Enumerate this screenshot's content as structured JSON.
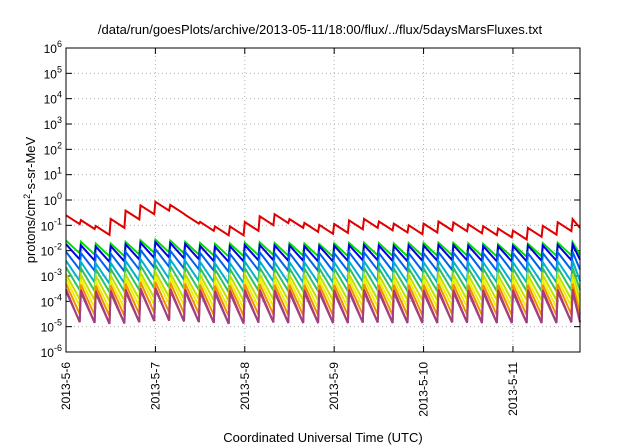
{
  "chart_data": {
    "type": "line",
    "title": "/data/run/goesPlots/archive/2013-05-11/18:00/flux/../flux/5daysMarsFluxes.txt",
    "xlabel": "Coordinated Universal Time (UTC)",
    "ylabel_prefix": "protons/cm",
    "ylabel_sup": "2",
    "ylabel_suffix": "-s-sr-MeV",
    "y_scale": "log",
    "ylim": [
      1e-06,
      1000000.0
    ],
    "xlim": [
      "2013-05-06 00:00",
      "2013-05-11 18:00"
    ],
    "x_ticks": [
      "2013-5-6",
      "2013-5-7",
      "2013-5-8",
      "2013-5-9",
      "2013-5-10",
      "2013-5-11"
    ],
    "y_ticks": [
      {
        "base": "10",
        "exp": "-6"
      },
      {
        "base": "10",
        "exp": "-5"
      },
      {
        "base": "10",
        "exp": "-4"
      },
      {
        "base": "10",
        "exp": "-3"
      },
      {
        "base": "10",
        "exp": "-2"
      },
      {
        "base": "10",
        "exp": "-1"
      },
      {
        "base": "10",
        "exp": "0"
      },
      {
        "base": "10",
        "exp": "1"
      },
      {
        "base": "10",
        "exp": "2"
      },
      {
        "base": "10",
        "exp": "3"
      },
      {
        "base": "10",
        "exp": "4"
      },
      {
        "base": "10",
        "exp": "5"
      },
      {
        "base": "10",
        "exp": "6"
      }
    ],
    "grid": true,
    "sawtooth_period_hours": 4.0,
    "series": [
      {
        "color": "#e00000",
        "values": [
          0.25,
          0.15,
          0.08,
          0.3,
          0.5,
          0.9,
          0.7,
          0.25,
          0.12,
          0.08,
          0.1,
          0.2,
          0.3,
          0.18,
          0.12,
          0.1,
          0.12,
          0.2,
          0.15,
          0.12,
          0.1,
          0.12,
          0.15,
          0.12,
          0.1,
          0.08,
          0.06,
          0.08,
          0.1,
          0.15,
          0.2
        ]
      },
      {
        "color": "#00e000",
        "values": [
          0.025,
          0.022,
          0.018,
          0.02,
          0.025,
          0.028,
          0.025,
          0.022,
          0.02,
          0.018,
          0.02,
          0.022,
          0.02,
          0.02,
          0.019,
          0.018,
          0.02,
          0.021,
          0.02,
          0.019,
          0.02,
          0.02,
          0.021,
          0.02,
          0.019,
          0.018,
          0.018,
          0.019,
          0.02,
          0.021,
          0.022
        ]
      },
      {
        "color": "#0000e0",
        "values": [
          0.018,
          0.016,
          0.014,
          0.016,
          0.02,
          0.022,
          0.02,
          0.018,
          0.015,
          0.014,
          0.016,
          0.017,
          0.016,
          0.016,
          0.015,
          0.015,
          0.016,
          0.017,
          0.016,
          0.015,
          0.016,
          0.016,
          0.017,
          0.016,
          0.015,
          0.015,
          0.015,
          0.016,
          0.016,
          0.017,
          0.018
        ]
      },
      {
        "color": "#0060f0",
        "values": [
          0.009,
          0.008,
          0.007,
          0.008,
          0.01,
          0.012,
          0.01,
          0.009,
          0.008,
          0.007,
          0.008,
          0.009,
          0.008,
          0.008,
          0.008,
          0.008,
          0.008,
          0.009,
          0.008,
          0.008,
          0.008,
          0.008,
          0.009,
          0.008,
          0.008,
          0.008,
          0.008,
          0.008,
          0.008,
          0.009,
          0.009
        ]
      },
      {
        "color": "#00b0d0",
        "values": [
          0.004,
          0.0035,
          0.003,
          0.0035,
          0.0045,
          0.005,
          0.0045,
          0.004,
          0.0035,
          0.003,
          0.0035,
          0.004,
          0.0035,
          0.0035,
          0.0035,
          0.0035,
          0.0035,
          0.004,
          0.0035,
          0.0035,
          0.0035,
          0.0035,
          0.004,
          0.0035,
          0.0035,
          0.0035,
          0.0035,
          0.0035,
          0.0035,
          0.004,
          0.004
        ]
      },
      {
        "color": "#30c060",
        "values": [
          0.0022,
          0.002,
          0.0018,
          0.002,
          0.0025,
          0.0028,
          0.0025,
          0.0022,
          0.002,
          0.0018,
          0.002,
          0.0022,
          0.002,
          0.002,
          0.002,
          0.002,
          0.002,
          0.0022,
          0.002,
          0.002,
          0.002,
          0.002,
          0.0022,
          0.002,
          0.002,
          0.002,
          0.002,
          0.002,
          0.002,
          0.0022,
          0.0022
        ]
      },
      {
        "color": "#c0e000",
        "values": [
          0.0012,
          0.0011,
          0.001,
          0.0011,
          0.0013,
          0.0015,
          0.0013,
          0.0012,
          0.0011,
          0.001,
          0.0011,
          0.0012,
          0.0011,
          0.0011,
          0.0011,
          0.0011,
          0.0011,
          0.0012,
          0.0011,
          0.0011,
          0.0011,
          0.0011,
          0.0012,
          0.0011,
          0.0011,
          0.0011,
          0.0011,
          0.0011,
          0.0011,
          0.0012,
          0.0012
        ]
      },
      {
        "color": "#f0f000",
        "values": [
          0.0008,
          0.0007,
          0.0006,
          0.0007,
          0.0009,
          0.001,
          0.0009,
          0.0008,
          0.0007,
          0.0006,
          0.0007,
          0.0008,
          0.0007,
          0.0007,
          0.0007,
          0.0007,
          0.0007,
          0.0008,
          0.0007,
          0.0007,
          0.0007,
          0.0007,
          0.0008,
          0.0007,
          0.0007,
          0.0007,
          0.0007,
          0.0007,
          0.0007,
          0.0008,
          0.0008
        ]
      },
      {
        "color": "#f09000",
        "values": [
          0.0005,
          0.00045,
          0.0004,
          0.00045,
          0.00055,
          0.0006,
          0.00055,
          0.0005,
          0.00045,
          0.0004,
          0.00045,
          0.0005,
          0.00045,
          0.00045,
          0.00045,
          0.00045,
          0.00045,
          0.0005,
          0.00045,
          0.00045,
          0.00045,
          0.00045,
          0.0005,
          0.00045,
          0.00045,
          0.00045,
          0.00045,
          0.00045,
          0.00045,
          0.0005,
          0.0005
        ]
      },
      {
        "color": "#c03050",
        "values": [
          0.0003,
          0.00028,
          0.00025,
          0.00028,
          0.00032,
          0.00035,
          0.00032,
          0.0003,
          0.00028,
          0.00025,
          0.00028,
          0.0003,
          0.00028,
          0.00028,
          0.00028,
          0.00028,
          0.00028,
          0.0003,
          0.00028,
          0.00028,
          0.00028,
          0.00028,
          0.0003,
          0.00028,
          0.00028,
          0.00028,
          0.00028,
          0.00028,
          0.00028,
          0.0003,
          0.0003
        ]
      },
      {
        "color": "#a04080",
        "values": [
          0.00025,
          0.00022,
          0.0002,
          0.00022,
          0.00026,
          0.0003,
          0.00026,
          0.00024,
          0.00022,
          0.0002,
          0.00022,
          0.00024,
          0.00022,
          0.00022,
          0.00022,
          0.00022,
          0.00022,
          0.00024,
          0.00022,
          0.00022,
          0.00022,
          0.00022,
          0.00024,
          0.00022,
          0.00022,
          0.00022,
          0.00022,
          0.00022,
          0.00022,
          0.00024,
          0.00024
        ]
      }
    ],
    "sawtooth_depth_decades": [
      0.35,
      0.5,
      0.6,
      0.7,
      0.8,
      0.9,
      1.0,
      1.1,
      1.2,
      1.3,
      1.2
    ]
  }
}
